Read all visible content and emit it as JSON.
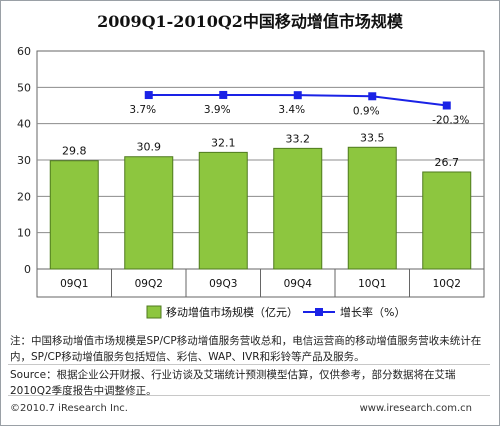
{
  "title": "2009Q1-2010Q2中国移动增值市场规模",
  "chart_data": {
    "type": "bar",
    "categories": [
      "09Q1",
      "09Q2",
      "09Q3",
      "09Q4",
      "10Q1",
      "10Q2"
    ],
    "series": [
      {
        "name": "移动增值市场规模（亿元）",
        "type": "bar",
        "values": [
          29.8,
          30.9,
          32.1,
          33.2,
          33.5,
          26.7
        ],
        "labels": [
          "29.8",
          "30.9",
          "32.1",
          "33.2",
          "33.5",
          "26.7"
        ]
      },
      {
        "name": "增长率（%）",
        "type": "line",
        "values": [
          null,
          3.7,
          3.9,
          3.4,
          0.9,
          -20.3
        ],
        "labels": [
          "",
          "3.7%",
          "3.9%",
          "3.4%",
          "0.9%",
          "-20.3%"
        ]
      }
    ],
    "ylim": [
      0,
      60
    ],
    "yticks": [
      "0",
      "10",
      "20",
      "30",
      "40",
      "50",
      "60"
    ],
    "grid": true,
    "legend_position": "bottom"
  },
  "notes": {
    "note": "注：中国移动增值市场规模是SP/CP移动增值服务营收总和，电信运营商的移动增值服务营收未统计在内，SP/CP移动增值服务包括短信、彩信、WAP、IVR和彩铃等产品及服务。",
    "source": "Source：根据企业公开财报、行业访谈及艾瑞统计预测模型估算，仅供参考，部分数据将在艾瑞2010Q2季度报告中调整修正。"
  },
  "footer": {
    "copyright": "©2010.7 iResearch Inc.",
    "website": "www.iresearch.com.cn"
  },
  "colors": {
    "bar_fill": "#8dc63f",
    "bar_stroke": "#4f7a1f",
    "line": "#1a22e6",
    "line_marker": "#1a22e6",
    "grid": "#8c8c8c",
    "plot_bg": "#ffffff"
  }
}
